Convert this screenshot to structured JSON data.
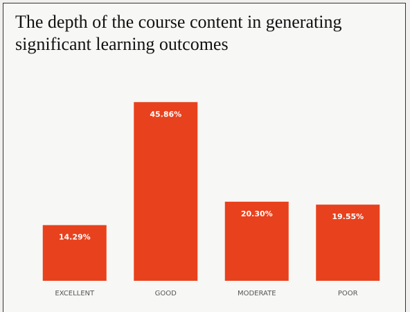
{
  "chart_data": {
    "type": "bar",
    "title": "The depth of the course content in generating significant learning outcomes",
    "categories": [
      "EXCELLENT",
      "GOOD",
      "MODERATE",
      "POOR"
    ],
    "values": [
      14.29,
      45.86,
      20.3,
      19.55
    ],
    "value_labels": [
      "14.29%",
      "45.86%",
      "20.30%",
      "19.55%"
    ],
    "color": "#e8411d"
  }
}
